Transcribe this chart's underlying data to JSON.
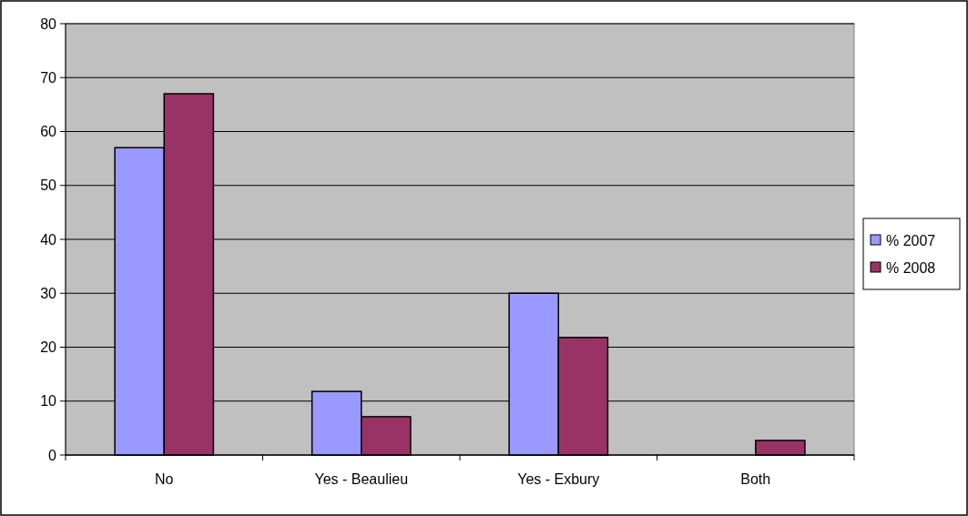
{
  "chart_data": {
    "type": "bar",
    "categories": [
      "No",
      "Yes - Beaulieu",
      "Yes - Exbury",
      "Both"
    ],
    "series": [
      {
        "name": "% 2007",
        "color": "#9999ff",
        "values": [
          57,
          11.8,
          30,
          0
        ]
      },
      {
        "name": "% 2008",
        "color": "#993366",
        "values": [
          67,
          7.1,
          21.8,
          2.7
        ]
      }
    ],
    "ylim": [
      0,
      80
    ],
    "yticks": [
      0,
      10,
      20,
      30,
      40,
      50,
      60,
      70,
      80
    ],
    "grid": "y",
    "legend": "right"
  }
}
